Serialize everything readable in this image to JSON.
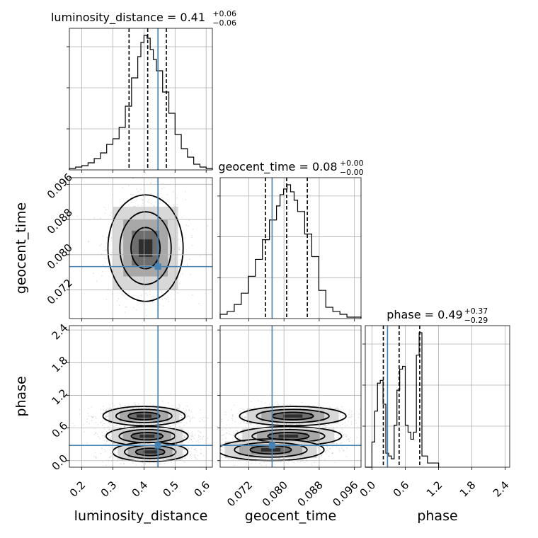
{
  "chart_data": {
    "type": "corner",
    "parameters": [
      "luminosity_distance",
      "geocent_time",
      "phase"
    ],
    "axis_labels": {
      "x": [
        "luminosity_distance",
        "geocent_time",
        "phase"
      ],
      "y": [
        "geocent_time",
        "phase"
      ]
    },
    "titles": [
      {
        "param": "luminosity_distance",
        "text": "luminosity_distance = 0.41",
        "plus": "+0.06",
        "minus": "−0.06"
      },
      {
        "param": "geocent_time",
        "text": "geocent_time = 0.08",
        "plus": "+0.00",
        "minus": "−0.00"
      },
      {
        "param": "phase",
        "text": "phase = 0.49",
        "plus": "+0.37",
        "minus": "−0.29"
      }
    ],
    "ranges": {
      "luminosity_distance": [
        0.16,
        0.62
      ],
      "geocent_time": [
        0.0655,
        0.0975
      ],
      "phase": [
        -0.12,
        2.48
      ]
    },
    "ticks": {
      "luminosity_distance": {
        "values": [
          0.2,
          0.3,
          0.4,
          0.5,
          0.6
        ],
        "labels": [
          "0.2",
          "0.3",
          "0.4",
          "0.5",
          "0.6"
        ]
      },
      "geocent_time": {
        "values": [
          0.072,
          0.08,
          0.088,
          0.096
        ],
        "labels": [
          "0.072",
          "0.080",
          "0.088",
          "0.096"
        ]
      },
      "phase": {
        "values": [
          0.0,
          0.6,
          1.2,
          1.8,
          2.4
        ],
        "labels": [
          "0.0",
          "0.6",
          "1.2",
          "1.8",
          "2.4"
        ]
      }
    },
    "truths": {
      "luminosity_distance": 0.445,
      "geocent_time": 0.0773,
      "phase": 0.28
    },
    "quantiles": {
      "luminosity_distance": [
        0.352,
        0.412,
        0.472
      ],
      "geocent_time": [
        0.0758,
        0.0806,
        0.0853
      ],
      "phase": [
        0.205,
        0.49,
        0.86
      ]
    },
    "histograms": {
      "luminosity_distance": {
        "edges": [
          0.16,
          0.18,
          0.2,
          0.22,
          0.24,
          0.26,
          0.28,
          0.3,
          0.32,
          0.34,
          0.36,
          0.38,
          0.39,
          0.4,
          0.41,
          0.42,
          0.43,
          0.44,
          0.46,
          0.48,
          0.5,
          0.52,
          0.54,
          0.56,
          0.58,
          0.6,
          0.62
        ],
        "counts": [
          1,
          2,
          3,
          5,
          8,
          12,
          18,
          22,
          30,
          45,
          65,
          80,
          90,
          95,
          93,
          85,
          78,
          70,
          55,
          40,
          25,
          15,
          9,
          4,
          2,
          1
        ]
      },
      "geocent_time": {
        "edges": [
          0.0655,
          0.0671,
          0.0687,
          0.0703,
          0.0719,
          0.0735,
          0.0751,
          0.0767,
          0.0783,
          0.0791,
          0.0799,
          0.0807,
          0.0815,
          0.0823,
          0.0831,
          0.0847,
          0.0863,
          0.0879,
          0.0895,
          0.0911,
          0.0927,
          0.0943,
          0.0959,
          0.0975
        ],
        "counts": [
          3,
          5,
          10,
          18,
          30,
          42,
          56,
          70,
          80,
          88,
          92,
          95,
          90,
          84,
          76,
          60,
          44,
          20,
          8,
          5,
          3,
          1,
          1
        ]
      },
      "phase": {
        "edges": [
          -0.12,
          0.0,
          0.05,
          0.1,
          0.15,
          0.2,
          0.25,
          0.3,
          0.35,
          0.4,
          0.45,
          0.5,
          0.55,
          0.6,
          0.65,
          0.7,
          0.75,
          0.8,
          0.85,
          0.9,
          1.0,
          1.2
        ],
        "counts": [
          0,
          18,
          40,
          60,
          62,
          45,
          10,
          8,
          6,
          30,
          55,
          70,
          72,
          30,
          25,
          20,
          25,
          80,
          96,
          8,
          3
        ]
      }
    },
    "density_2d": [
      {
        "x": "luminosity_distance",
        "y": "geocent_time",
        "modes": [
          {
            "x": 0.405,
            "y": 0.0815,
            "sx": 0.055,
            "sy": 0.0055
          }
        ]
      },
      {
        "x": "luminosity_distance",
        "y": "phase",
        "modes": [
          {
            "x": 0.4,
            "y": 0.82,
            "sx": 0.06,
            "sy": 0.08
          },
          {
            "x": 0.41,
            "y": 0.45,
            "sx": 0.06,
            "sy": 0.08
          },
          {
            "x": 0.42,
            "y": 0.16,
            "sx": 0.055,
            "sy": 0.08
          }
        ]
      },
      {
        "x": "geocent_time",
        "y": "phase",
        "modes": [
          {
            "x": 0.082,
            "y": 0.82,
            "sx": 0.0055,
            "sy": 0.08
          },
          {
            "x": 0.081,
            "y": 0.45,
            "sx": 0.0055,
            "sy": 0.08
          },
          {
            "x": 0.077,
            "y": 0.2,
            "sx": 0.0055,
            "sy": 0.09
          }
        ]
      }
    ],
    "colors": {
      "truth": "#4682b4",
      "hist": "#000000",
      "grid": "#b0b0b0"
    },
    "grid": true
  }
}
